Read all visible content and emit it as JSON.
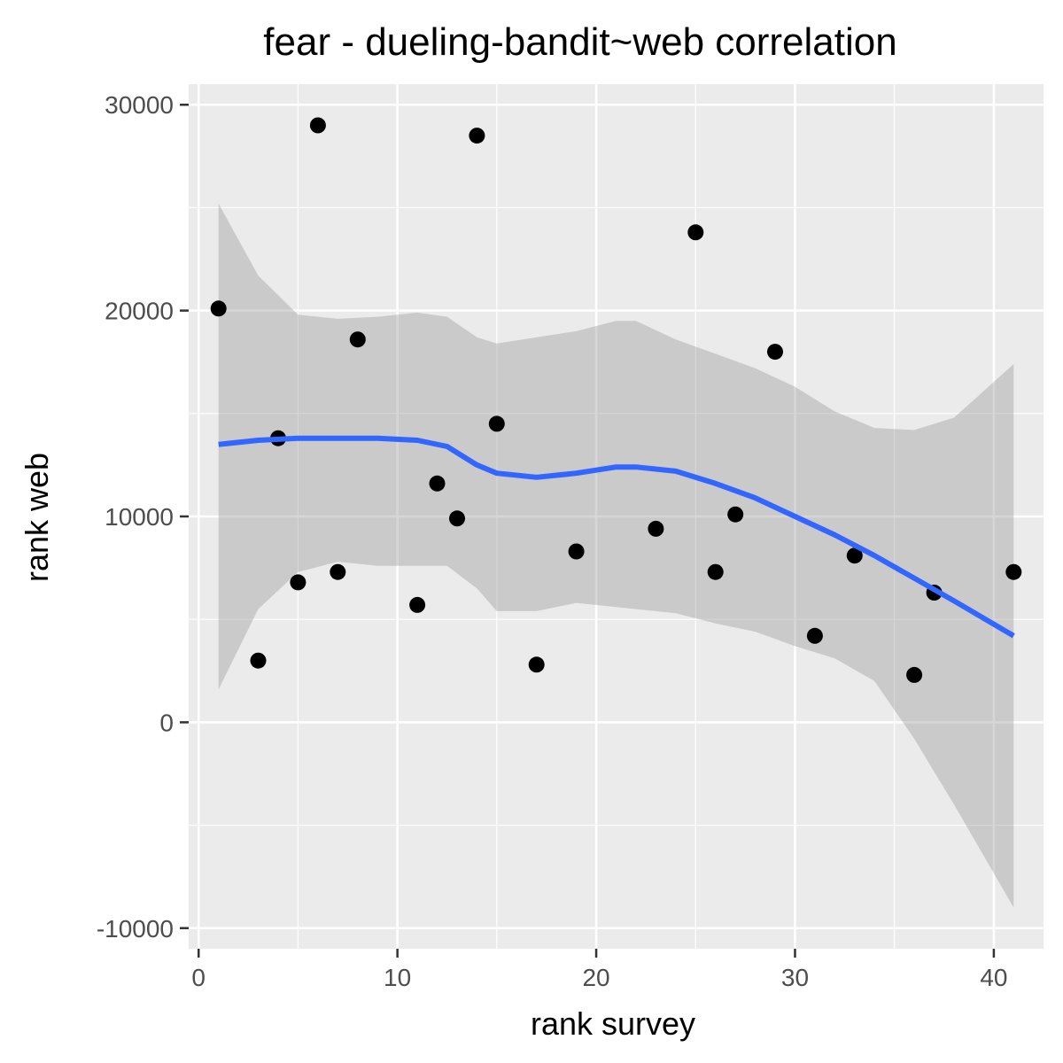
{
  "chart_data": {
    "type": "scatter",
    "title": "fear - dueling-bandit~web correlation",
    "xlabel": "rank survey",
    "ylabel": "rank web",
    "xlim": [
      -0.5,
      42.5
    ],
    "ylim": [
      -11000,
      31000
    ],
    "x_ticks": [
      0,
      10,
      20,
      30,
      40
    ],
    "y_ticks": [
      -10000,
      0,
      10000,
      20000,
      30000
    ],
    "x_tick_labels": [
      "0",
      "10",
      "20",
      "30",
      "40"
    ],
    "y_tick_labels": [
      "-10000",
      "0",
      "10000",
      "20000",
      "30000"
    ],
    "grid": true,
    "points": [
      {
        "x": 1,
        "y": 20100
      },
      {
        "x": 3,
        "y": 3000
      },
      {
        "x": 4,
        "y": 13800
      },
      {
        "x": 5,
        "y": 6800
      },
      {
        "x": 6,
        "y": 29000
      },
      {
        "x": 7,
        "y": 7300
      },
      {
        "x": 8,
        "y": 18600
      },
      {
        "x": 11,
        "y": 5700
      },
      {
        "x": 12,
        "y": 11600
      },
      {
        "x": 13,
        "y": 9900
      },
      {
        "x": 14,
        "y": 28500
      },
      {
        "x": 15,
        "y": 14500
      },
      {
        "x": 17,
        "y": 2800
      },
      {
        "x": 19,
        "y": 8300
      },
      {
        "x": 23,
        "y": 9400
      },
      {
        "x": 25,
        "y": 23800
      },
      {
        "x": 26,
        "y": 7300
      },
      {
        "x": 27,
        "y": 10100
      },
      {
        "x": 29,
        "y": 18000
      },
      {
        "x": 31,
        "y": 4200
      },
      {
        "x": 33,
        "y": 8100
      },
      {
        "x": 36,
        "y": 2300
      },
      {
        "x": 37,
        "y": 6300
      },
      {
        "x": 41,
        "y": 7300
      }
    ],
    "smooth": {
      "method": "loess",
      "x": [
        1,
        3,
        5,
        7,
        9,
        11,
        12.5,
        14,
        15,
        17,
        19,
        21,
        22,
        24,
        26,
        28,
        30,
        32,
        34,
        36,
        38,
        41
      ],
      "y": [
        13500,
        13700,
        13800,
        13800,
        13800,
        13700,
        13400,
        12500,
        12100,
        11900,
        12100,
        12400,
        12400,
        12200,
        11600,
        10900,
        10000,
        9100,
        8100,
        7000,
        5900,
        4200
      ],
      "lower": [
        1600,
        5500,
        7300,
        7800,
        7600,
        7600,
        7600,
        6500,
        5400,
        5400,
        5800,
        5600,
        5500,
        5300,
        4800,
        4400,
        3700,
        3100,
        2000,
        -800,
        -4000,
        -9000
      ],
      "upper": [
        25200,
        21700,
        19800,
        19600,
        19700,
        19900,
        19700,
        18700,
        18400,
        18700,
        19000,
        19500,
        19500,
        18600,
        17900,
        17200,
        16300,
        15100,
        14300,
        14200,
        14800,
        17400
      ]
    },
    "colors": {
      "panel_background": "#ebebeb",
      "grid_line": "#ffffff",
      "point": "#000000",
      "smooth_line": "#3366ff",
      "confidence_band": "#999999",
      "tick_label": "#4d4d4d",
      "tick_mark": "#333333"
    }
  }
}
